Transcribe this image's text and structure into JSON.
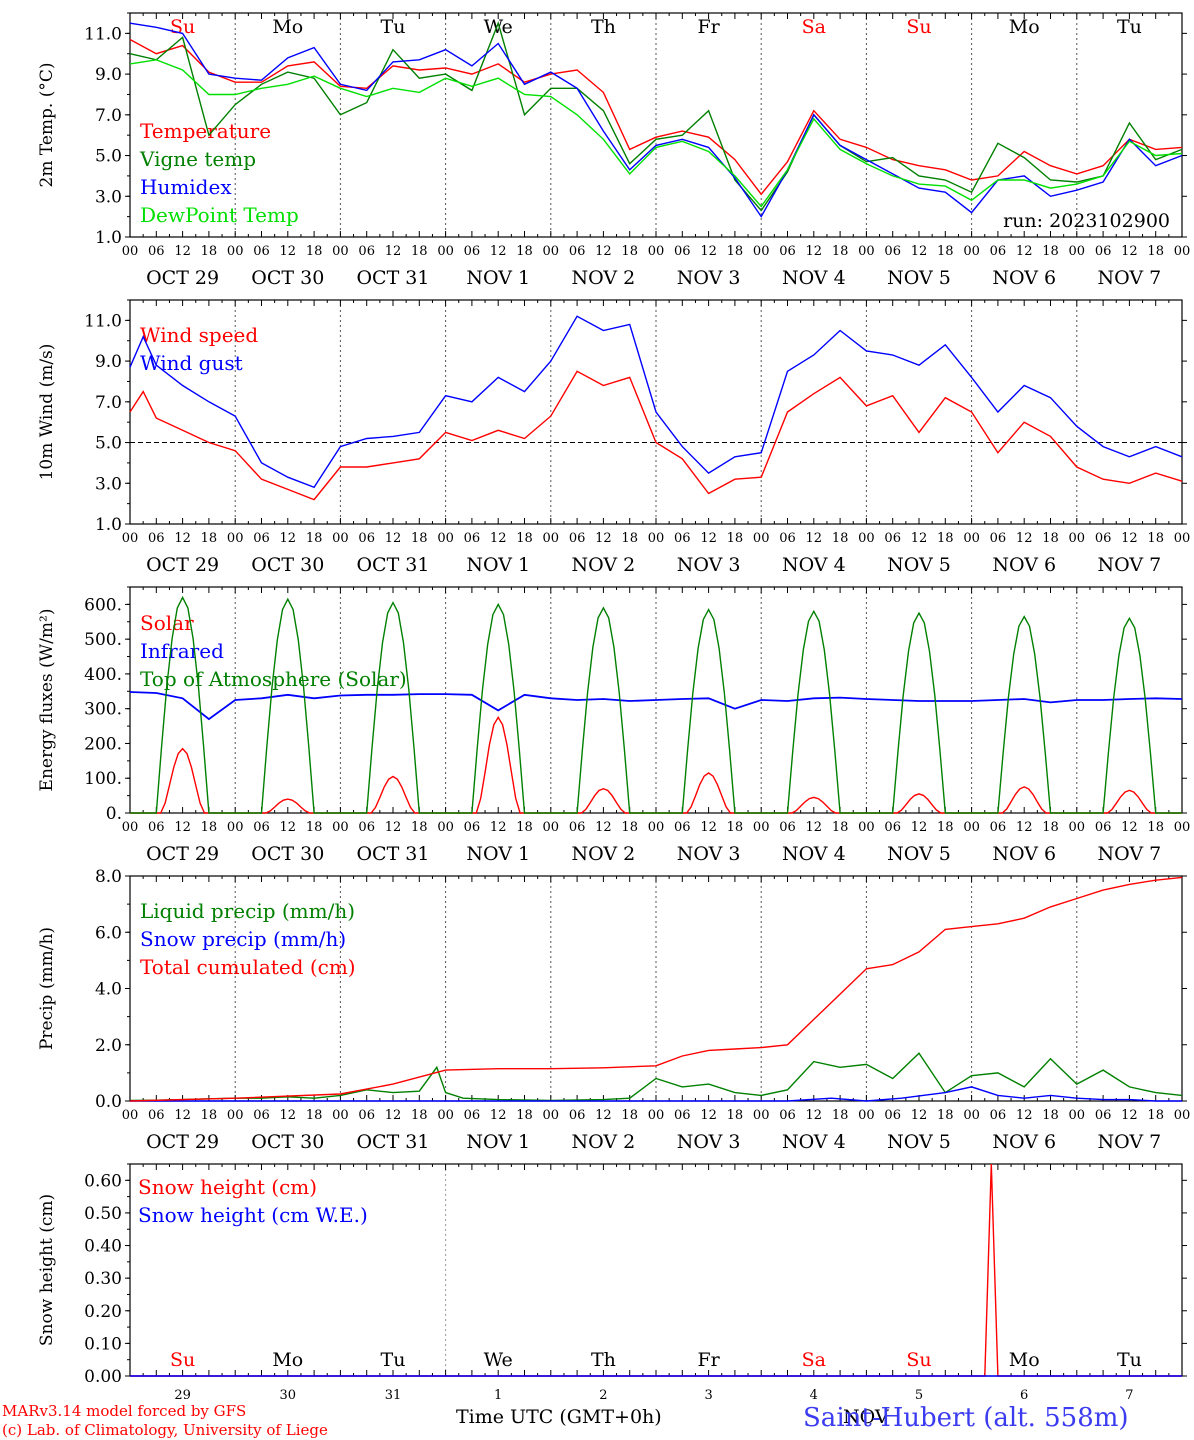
{
  "run_label": "run: 2023102900",
  "x_axis_label": "Time UTC (GMT+0h)",
  "month_label": "NOV",
  "station_label": "Saint-Hubert (alt. 558m)",
  "credit_lines": [
    "MARv3.14 model forced by GFS",
    "(c) Lab. of Climatology, University of Liege"
  ],
  "days": [
    {
      "dow": "Su",
      "date": "OCT 29",
      "num": "29",
      "weekend": true
    },
    {
      "dow": "Mo",
      "date": "OCT 30",
      "num": "30",
      "weekend": false
    },
    {
      "dow": "Tu",
      "date": "OCT 31",
      "num": "31",
      "weekend": false
    },
    {
      "dow": "We",
      "date": "NOV  1",
      "num": "1",
      "weekend": false
    },
    {
      "dow": "Th",
      "date": "NOV  2",
      "num": "2",
      "weekend": false
    },
    {
      "dow": "Fr",
      "date": "NOV  3",
      "num": "3",
      "weekend": false
    },
    {
      "dow": "Sa",
      "date": "NOV  4",
      "num": "4",
      "weekend": true
    },
    {
      "dow": "Su",
      "date": "NOV  5",
      "num": "5",
      "weekend": true
    },
    {
      "dow": "Mo",
      "date": "NOV  6",
      "num": "6",
      "weekend": false
    },
    {
      "dow": "Tu",
      "date": "NOV  7",
      "num": "7",
      "weekend": false
    }
  ],
  "hour_ticks": [
    "00",
    "06",
    "12",
    "18"
  ],
  "colors": {
    "red": "#ff0000",
    "green": "#008000",
    "blue": "#0000ff",
    "lightgreen": "#00e000",
    "weekend": "#ff0000"
  },
  "chart_data": [
    {
      "type": "line",
      "ylabel": "2m Temp. (°C)",
      "ylim": [
        1,
        12
      ],
      "yticks": [
        1,
        3,
        5,
        7,
        9,
        11
      ],
      "grid": "vertical dotted day separators",
      "legend_position": "bottom-left",
      "x_unit": "hours since 2023-10-29 00 UTC (printed as day / hour ticks)",
      "series": [
        {
          "name": "Temperature",
          "color": "#ff0000",
          "x": [
            0,
            6,
            12,
            18,
            24,
            30,
            36,
            42,
            48,
            54,
            60,
            66,
            72,
            78,
            84,
            90,
            96,
            102,
            108,
            114,
            120,
            126,
            132,
            138,
            144,
            150,
            156,
            162,
            168,
            174,
            180,
            186,
            192,
            198,
            204,
            210,
            216,
            222,
            228,
            234,
            240
          ],
          "values": [
            10.7,
            10.0,
            10.4,
            9.1,
            8.6,
            8.6,
            9.4,
            9.6,
            8.4,
            8.3,
            9.4,
            9.2,
            9.3,
            9.0,
            9.5,
            8.6,
            9.0,
            9.2,
            8.1,
            5.3,
            5.9,
            6.2,
            5.9,
            4.8,
            3.1,
            4.7,
            7.2,
            5.8,
            5.4,
            4.8,
            4.5,
            4.3,
            3.8,
            4.0,
            5.2,
            4.5,
            4.1,
            4.5,
            5.8,
            5.3,
            5.4
          ]
        },
        {
          "name": "Vigne temp",
          "color": "#008000",
          "x": [
            0,
            6,
            12,
            18,
            24,
            30,
            36,
            42,
            48,
            54,
            60,
            66,
            72,
            78,
            84,
            90,
            96,
            102,
            108,
            114,
            120,
            126,
            132,
            138,
            144,
            150,
            156,
            162,
            168,
            174,
            180,
            186,
            192,
            198,
            204,
            210,
            216,
            222,
            228,
            234,
            240
          ],
          "values": [
            10.0,
            9.7,
            10.8,
            6.0,
            7.5,
            8.5,
            9.1,
            8.8,
            7.0,
            7.6,
            10.2,
            8.8,
            9.0,
            8.2,
            11.5,
            7.0,
            8.3,
            8.3,
            7.2,
            4.6,
            5.8,
            6.0,
            7.2,
            3.8,
            2.3,
            4.2,
            7.0,
            5.5,
            4.7,
            4.9,
            4.0,
            3.8,
            3.2,
            5.6,
            4.9,
            3.8,
            3.7,
            4.0,
            6.6,
            4.8,
            5.3
          ]
        },
        {
          "name": "Humidex",
          "color": "#0000ff",
          "x": [
            0,
            6,
            12,
            18,
            24,
            30,
            36,
            42,
            48,
            54,
            60,
            66,
            72,
            78,
            84,
            90,
            96,
            102,
            108,
            114,
            120,
            126,
            132,
            138,
            144,
            150,
            156,
            162,
            168,
            174,
            180,
            186,
            192,
            198,
            204,
            210,
            216,
            222,
            228,
            234,
            240
          ],
          "values": [
            11.5,
            11.3,
            11.0,
            9.0,
            8.8,
            8.7,
            9.8,
            10.3,
            8.5,
            8.2,
            9.6,
            9.7,
            10.2,
            9.4,
            10.5,
            8.5,
            9.1,
            8.3,
            6.2,
            4.3,
            5.5,
            5.8,
            5.4,
            3.9,
            2.0,
            4.3,
            7.0,
            5.5,
            4.8,
            4.1,
            3.4,
            3.2,
            2.2,
            3.8,
            4.0,
            3.0,
            3.3,
            3.7,
            5.8,
            4.5,
            5.0
          ]
        },
        {
          "name": "DewPoint Temp",
          "color": "#00e000",
          "x": [
            0,
            6,
            12,
            18,
            24,
            30,
            36,
            42,
            48,
            54,
            60,
            66,
            72,
            78,
            84,
            90,
            96,
            102,
            108,
            114,
            120,
            126,
            132,
            138,
            144,
            150,
            156,
            162,
            168,
            174,
            180,
            186,
            192,
            198,
            204,
            210,
            216,
            222,
            228,
            234,
            240
          ],
          "values": [
            9.5,
            9.7,
            9.2,
            8.0,
            8.0,
            8.3,
            8.5,
            8.9,
            8.3,
            7.9,
            8.3,
            8.1,
            8.8,
            8.4,
            8.8,
            8.0,
            7.9,
            7.0,
            5.8,
            4.1,
            5.4,
            5.7,
            5.2,
            4.0,
            2.5,
            4.3,
            6.8,
            5.3,
            4.6,
            4.0,
            3.6,
            3.5,
            2.8,
            3.8,
            3.8,
            3.4,
            3.6,
            4.0,
            5.7,
            5.0,
            5.1
          ]
        }
      ]
    },
    {
      "type": "line",
      "ylabel": "10m Wind (m/s)",
      "ylim": [
        1,
        12
      ],
      "yticks": [
        1,
        3,
        5,
        7,
        9,
        11
      ],
      "reference_line": 5,
      "legend_position": "top-left",
      "x_unit": "hours since 2023-10-29 00 UTC (printed as day / hour ticks)",
      "series": [
        {
          "name": "Wind speed",
          "color": "#ff0000",
          "x": [
            0,
            3,
            6,
            12,
            18,
            24,
            30,
            36,
            42,
            48,
            54,
            60,
            66,
            72,
            78,
            84,
            90,
            96,
            102,
            108,
            114,
            120,
            126,
            132,
            138,
            144,
            150,
            156,
            162,
            168,
            174,
            180,
            186,
            192,
            198,
            204,
            210,
            216,
            222,
            228,
            234,
            240
          ],
          "values": [
            6.5,
            7.5,
            6.2,
            5.6,
            5.0,
            4.6,
            3.2,
            2.7,
            2.2,
            3.8,
            3.8,
            4.0,
            4.2,
            5.5,
            5.1,
            5.6,
            5.2,
            6.3,
            8.5,
            7.8,
            8.2,
            5.0,
            4.2,
            2.5,
            3.2,
            3.3,
            6.5,
            7.4,
            8.2,
            6.8,
            7.3,
            5.5,
            7.2,
            6.5,
            4.5,
            6.0,
            5.3,
            3.8,
            3.2,
            3.0,
            3.5,
            3.1
          ]
        },
        {
          "name": "Wind gust",
          "color": "#0000ff",
          "x": [
            0,
            3,
            6,
            12,
            18,
            24,
            30,
            36,
            42,
            48,
            54,
            60,
            66,
            72,
            78,
            84,
            90,
            96,
            102,
            108,
            114,
            120,
            126,
            132,
            138,
            144,
            150,
            156,
            162,
            168,
            174,
            180,
            186,
            192,
            198,
            204,
            210,
            216,
            222,
            228,
            234,
            240
          ],
          "values": [
            8.7,
            10.2,
            8.8,
            7.8,
            7.0,
            6.3,
            4.0,
            3.3,
            2.8,
            4.8,
            5.2,
            5.3,
            5.5,
            7.3,
            7.0,
            8.2,
            7.5,
            9.0,
            11.2,
            10.5,
            10.8,
            6.5,
            4.8,
            3.5,
            4.3,
            4.5,
            8.5,
            9.3,
            10.5,
            9.5,
            9.3,
            8.8,
            9.8,
            8.2,
            6.5,
            7.8,
            7.2,
            5.8,
            4.8,
            4.3,
            4.8,
            4.3
          ]
        }
      ]
    },
    {
      "type": "line",
      "ylabel": "Energy fluxes (W/m²)",
      "ylim": [
        0,
        650
      ],
      "yticks": [
        0,
        100,
        200,
        300,
        400,
        500,
        600
      ],
      "legend_position": "top-left",
      "x_unit": "hours since 2023-10-29 00 UTC (printed as day / hour ticks)",
      "solar_peaks": [
        185,
        40,
        105,
        275,
        70,
        115,
        45,
        55,
        75,
        65
      ],
      "toa_peaks": [
        620,
        615,
        605,
        600,
        590,
        585,
        580,
        575,
        565,
        560
      ],
      "series": [
        {
          "name": "Solar",
          "color": "#ff0000",
          "x": [],
          "values": []
        },
        {
          "name": "Infrared",
          "color": "#0000ff",
          "x": [
            0,
            6,
            12,
            18,
            24,
            30,
            36,
            42,
            48,
            54,
            60,
            66,
            72,
            78,
            84,
            90,
            96,
            102,
            108,
            114,
            120,
            126,
            132,
            138,
            144,
            150,
            156,
            162,
            168,
            174,
            180,
            186,
            192,
            198,
            204,
            210,
            216,
            222,
            228,
            234,
            240
          ],
          "values": [
            348,
            345,
            330,
            270,
            325,
            330,
            340,
            330,
            338,
            340,
            340,
            342,
            342,
            340,
            295,
            340,
            330,
            325,
            328,
            322,
            325,
            328,
            330,
            300,
            325,
            322,
            330,
            332,
            328,
            325,
            322,
            322,
            322,
            325,
            328,
            318,
            325,
            325,
            328,
            330,
            328
          ]
        },
        {
          "name": "Top of Atmosphere (Solar)",
          "color": "#008000",
          "x": [],
          "values": []
        }
      ]
    },
    {
      "type": "line",
      "ylabel": "Precip (mm/h)",
      "ylim": [
        0,
        8
      ],
      "yticks": [
        0,
        2,
        4,
        6,
        8
      ],
      "legend_position": "top-left",
      "x_unit": "hours since 2023-10-29 00 UTC (printed as day / hour ticks)",
      "series": [
        {
          "name": "Liquid precip (mm/h)",
          "color": "#008000",
          "x": [
            0,
            6,
            12,
            18,
            24,
            30,
            36,
            42,
            48,
            54,
            60,
            66,
            70,
            72,
            76,
            84,
            96,
            108,
            114,
            120,
            126,
            132,
            138,
            144,
            150,
            156,
            162,
            168,
            174,
            180,
            186,
            192,
            198,
            204,
            210,
            216,
            222,
            228,
            234,
            240
          ],
          "values": [
            0.02,
            0.03,
            0.05,
            0.08,
            0.1,
            0.1,
            0.15,
            0.1,
            0.2,
            0.4,
            0.3,
            0.35,
            1.2,
            0.3,
            0.1,
            0.05,
            0.02,
            0.05,
            0.1,
            0.8,
            0.5,
            0.6,
            0.3,
            0.2,
            0.4,
            1.4,
            1.2,
            1.3,
            0.8,
            1.7,
            0.3,
            0.9,
            1.0,
            0.5,
            1.5,
            0.6,
            1.1,
            0.5,
            0.3,
            0.2
          ]
        },
        {
          "name": "Snow precip (mm/h)",
          "color": "#0000ff",
          "x": [
            0,
            150,
            160,
            168,
            176,
            186,
            192,
            198,
            204,
            210,
            216,
            222,
            228,
            234,
            240
          ],
          "values": [
            0.0,
            0.0,
            0.1,
            0.0,
            0.1,
            0.3,
            0.5,
            0.2,
            0.1,
            0.2,
            0.1,
            0.05,
            0.05,
            0.0,
            0.0
          ]
        },
        {
          "name": "Total cumulated (cm)",
          "color": "#ff0000",
          "x": [
            0,
            24,
            48,
            60,
            72,
            84,
            96,
            108,
            120,
            126,
            132,
            138,
            144,
            150,
            156,
            162,
            168,
            174,
            180,
            186,
            192,
            198,
            204,
            210,
            216,
            222,
            228,
            234,
            240
          ],
          "values": [
            0.0,
            0.1,
            0.25,
            0.6,
            1.1,
            1.15,
            1.15,
            1.18,
            1.25,
            1.6,
            1.8,
            1.85,
            1.9,
            2.0,
            2.9,
            3.8,
            4.7,
            4.85,
            5.3,
            6.1,
            6.2,
            6.3,
            6.5,
            6.9,
            7.2,
            7.5,
            7.7,
            7.85,
            7.95
          ]
        }
      ]
    },
    {
      "type": "line",
      "ylabel": "Snow height (cm)",
      "ylim": [
        0,
        0.65
      ],
      "yticks": [
        0,
        0.1,
        0.2,
        0.3,
        0.4,
        0.5,
        0.6
      ],
      "legend_position": "top-left",
      "x_unit": "hours since 2023-10-29 00 UTC (printed as day / hour ticks)",
      "series": [
        {
          "name": "Snow height (cm)",
          "color": "#ff0000",
          "x": [
            0,
            195,
            196.5,
            198,
            240
          ],
          "values": [
            0,
            0,
            0.65,
            0,
            0
          ]
        },
        {
          "name": "Snow height (cm W.E.)",
          "color": "#0000ff",
          "x": [
            0,
            240
          ],
          "values": [
            0,
            0
          ]
        }
      ]
    }
  ]
}
